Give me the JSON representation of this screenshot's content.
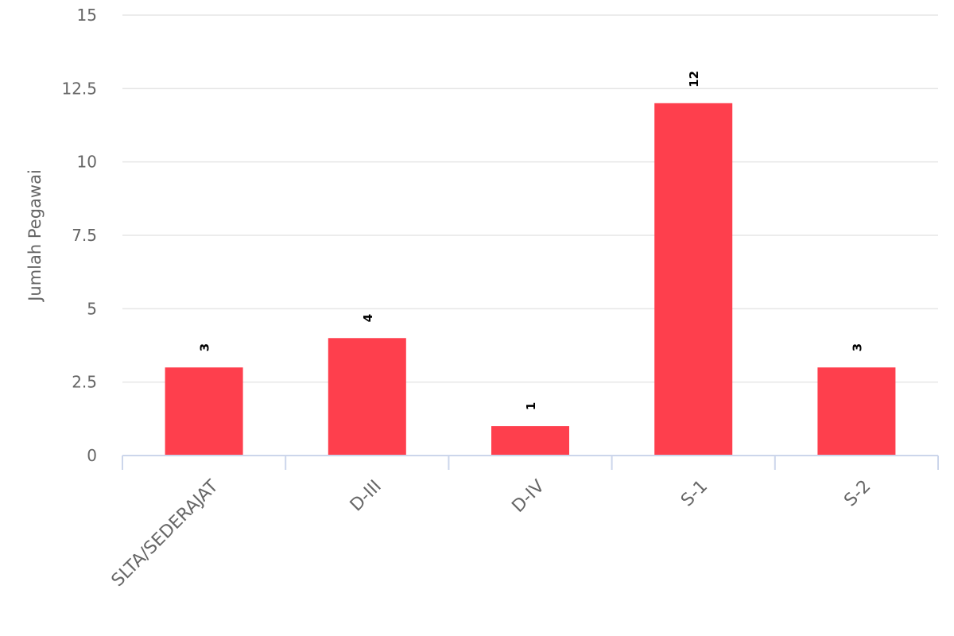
{
  "chart_data": {
    "type": "bar",
    "categories": [
      "SLTA/SEDERAJAT",
      "D-III",
      "D-IV",
      "S-1",
      "S-2"
    ],
    "values": [
      3,
      4,
      1,
      12,
      3
    ],
    "data_labels": [
      "3",
      "4",
      "1",
      "12",
      "3"
    ],
    "title": "",
    "xlabel": "",
    "ylabel": "Jumlah Pegawai",
    "ylim": [
      0,
      15
    ],
    "yticks": [
      0,
      2.5,
      5,
      7.5,
      10,
      12.5,
      15
    ],
    "ytick_labels": [
      "0",
      "2.5",
      "5",
      "7.5",
      "10",
      "12.5",
      "15"
    ],
    "bar_color": "#fe3f4d",
    "grid": true,
    "legend": false
  }
}
